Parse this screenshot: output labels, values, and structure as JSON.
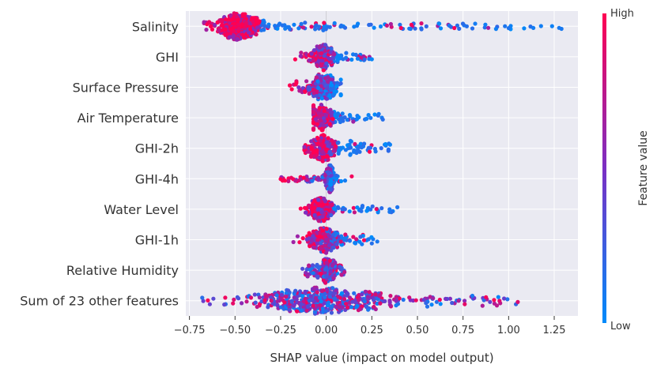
{
  "chart_data": {
    "type": "scatter",
    "subtype": "shap-beeswarm",
    "title": "",
    "xlabel": "SHAP value (impact on model output)",
    "xlim": [
      -0.77,
      1.38
    ],
    "x_ticks": [
      "−0.75",
      "−0.50",
      "−0.25",
      "0.00",
      "0.25",
      "0.50",
      "0.75",
      "1.00",
      "1.25"
    ],
    "x_tick_values": [
      -0.75,
      -0.5,
      -0.25,
      0.0,
      0.25,
      0.5,
      0.75,
      1.0,
      1.25
    ],
    "grid": true,
    "colorbar": {
      "title": "Feature value",
      "high_label": "High",
      "low_label": "Low",
      "high_color": "#ff0052",
      "mid_color": "#7b2fc4",
      "low_color": "#008bfb"
    },
    "features": [
      {
        "name": "Salinity",
        "min": -0.67,
        "max": 1.29,
        "center": -0.48,
        "spread": 0.06,
        "peak": 0.72,
        "color_trend": "high-left"
      },
      {
        "name": "GHI",
        "min": -0.17,
        "max": 0.25,
        "center": -0.02,
        "spread": 0.035,
        "peak": 0.78,
        "color_trend": "high-left"
      },
      {
        "name": "Surface Pressure",
        "min": -0.2,
        "max": 0.08,
        "center": -0.01,
        "spread": 0.045,
        "peak": 0.8,
        "color_trend": "high-left"
      },
      {
        "name": "Air Temperature",
        "min": -0.07,
        "max": 0.31,
        "center": -0.03,
        "spread": 0.035,
        "peak": 0.75,
        "color_trend": "high-left"
      },
      {
        "name": "GHI-2h",
        "min": -0.12,
        "max": 0.35,
        "center": -0.02,
        "spread": 0.04,
        "peak": 0.72,
        "color_trend": "high-left"
      },
      {
        "name": "GHI-4h",
        "min": -0.25,
        "max": 0.14,
        "center": 0.02,
        "spread": 0.012,
        "peak": 0.78,
        "color_trend": "high-left"
      },
      {
        "name": "Water Level",
        "min": -0.14,
        "max": 0.39,
        "center": -0.03,
        "spread": 0.035,
        "peak": 0.72,
        "color_trend": "high-left"
      },
      {
        "name": "GHI-1h",
        "min": -0.18,
        "max": 0.28,
        "center": -0.01,
        "spread": 0.04,
        "peak": 0.75,
        "color_trend": "high-left"
      },
      {
        "name": "Relative Humidity",
        "min": -0.13,
        "max": 0.1,
        "center": 0.01,
        "spread": 0.03,
        "peak": 0.8,
        "color_trend": "mixed"
      },
      {
        "name": "Sum of 23 other features",
        "min": -0.68,
        "max": 1.05,
        "center": -0.05,
        "spread": 0.18,
        "peak": 0.72,
        "color_trend": "mixed"
      }
    ]
  }
}
